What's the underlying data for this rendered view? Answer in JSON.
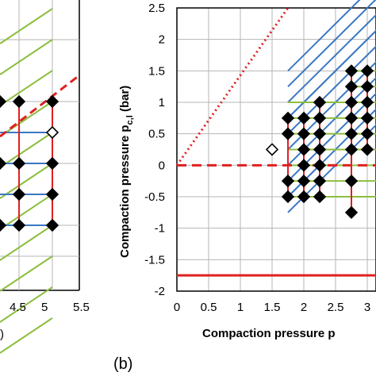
{
  "chart_data": [
    {
      "panel": "(a)",
      "type": "scatter",
      "title": "",
      "xlabel_visible_fragment": ")",
      "x_ticks": [
        "4.5",
        "5",
        "5.5"
      ],
      "x_tick_values": [
        4.5,
        5,
        5.5
      ],
      "grid": true,
      "points_filled": [
        {
          "x": 4.5,
          "y": 5
        },
        {
          "x": 5,
          "y": 5
        },
        {
          "x": 4.5,
          "y": 4
        },
        {
          "x": 5,
          "y": 4
        },
        {
          "x": 4.5,
          "y": 3
        },
        {
          "x": 5,
          "y": 3
        },
        {
          "x": 4.5,
          "y": 2
        },
        {
          "x": 5,
          "y": 2
        },
        {
          "x": 4.5,
          "y": 1
        },
        {
          "x": 5,
          "y": 1
        },
        {
          "x": 4,
          "y": 5
        },
        {
          "x": 4,
          "y": 3
        },
        {
          "x": 4,
          "y": 1
        }
      ],
      "points_open": [
        {
          "x": 5,
          "y": 3.5
        }
      ],
      "colors": {
        "red": "#e02020",
        "green": "#8cbf3f",
        "blue": "#3a78c3",
        "marker": "#000000"
      }
    },
    {
      "panel": "(b)",
      "type": "scatter",
      "title": "",
      "xlabel": "Compaction pressure p",
      "ylabel": "Compaction pressure p",
      "ylabel_subscript": "c,l",
      "ylabel_unit": " (bar)",
      "x_ticks": [
        "0",
        "0.5",
        "1",
        "1.5",
        "2",
        "2.5",
        "3"
      ],
      "x_tick_values": [
        0,
        0.5,
        1,
        1.5,
        2,
        2.5,
        3
      ],
      "y_ticks": [
        "2.5",
        "2",
        "1.5",
        "1",
        "0.5",
        "0",
        "-0.5",
        "-1",
        "-1.5",
        "-2"
      ],
      "y_tick_values": [
        2.5,
        2,
        1.5,
        1,
        0.5,
        0,
        -0.5,
        -1,
        -1.5,
        -2
      ],
      "xlim": [
        0,
        3.25
      ],
      "ylim": [
        -2,
        2.5
      ],
      "grid": true,
      "points_filled": [
        {
          "x": 1.75,
          "y": 0.75
        },
        {
          "x": 1.75,
          "y": 0.5
        },
        {
          "x": 1.75,
          "y": -0.25
        },
        {
          "x": 1.75,
          "y": -0.5
        },
        {
          "x": 2.0,
          "y": 0.75
        },
        {
          "x": 2.0,
          "y": 0.5
        },
        {
          "x": 2.0,
          "y": 0.25
        },
        {
          "x": 2.0,
          "y": 0
        },
        {
          "x": 2.0,
          "y": -0.25
        },
        {
          "x": 2.0,
          "y": -0.5
        },
        {
          "x": 2.25,
          "y": 1.0
        },
        {
          "x": 2.25,
          "y": 0.75
        },
        {
          "x": 2.25,
          "y": 0.5
        },
        {
          "x": 2.25,
          "y": 0.25
        },
        {
          "x": 2.25,
          "y": 0
        },
        {
          "x": 2.25,
          "y": -0.25
        },
        {
          "x": 2.25,
          "y": -0.5
        },
        {
          "x": 2.75,
          "y": 1.5
        },
        {
          "x": 2.75,
          "y": 1.25
        },
        {
          "x": 2.75,
          "y": 1.0
        },
        {
          "x": 2.75,
          "y": 0.75
        },
        {
          "x": 2.75,
          "y": 0.5
        },
        {
          "x": 2.75,
          "y": 0.25
        },
        {
          "x": 2.75,
          "y": -0.25
        },
        {
          "x": 2.75,
          "y": -0.75
        },
        {
          "x": 3.0,
          "y": 1.5
        },
        {
          "x": 3.0,
          "y": 1.25
        },
        {
          "x": 3.0,
          "y": 1.0
        },
        {
          "x": 3.0,
          "y": 0.75
        },
        {
          "x": 3.0,
          "y": 0.5
        },
        {
          "x": 3.0,
          "y": 0.25
        }
      ],
      "points_open": [
        {
          "x": 1.5,
          "y": 0.25
        },
        {
          "x": 3.25,
          "y": 0.75
        }
      ],
      "reference_lines": [
        {
          "style": "dotted",
          "color": "#e02020",
          "from": [
            0,
            0
          ],
          "to": [
            1.75,
            2.5
          ]
        },
        {
          "style": "dashed",
          "color": "#e02020",
          "from": [
            0,
            0
          ],
          "to": [
            3.25,
            0
          ]
        },
        {
          "style": "solid",
          "color": "#e02020",
          "from": [
            0,
            -1.75
          ],
          "to": [
            3.25,
            -1.75
          ]
        }
      ],
      "colors": {
        "red": "#e02020",
        "green": "#8cbf3f",
        "blue": "#3a78c3",
        "marker": "#000000"
      }
    }
  ]
}
